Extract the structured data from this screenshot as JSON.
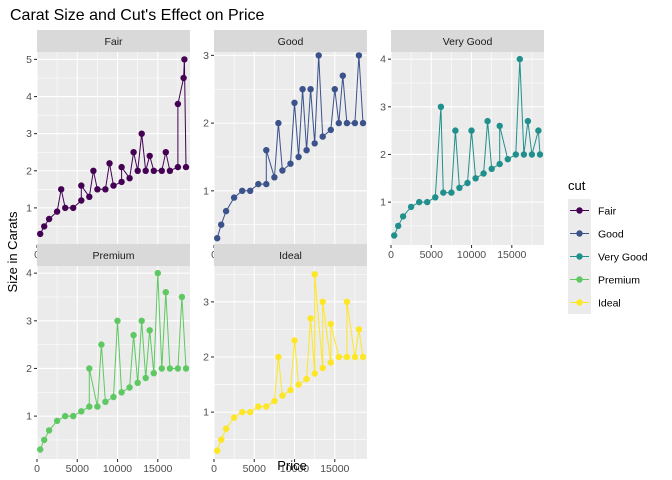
{
  "chart_data": {
    "type": "scatter",
    "title": "Carat Size and Cut's Effect on Price",
    "xlabel": "Price",
    "ylabel": "Size in Carats",
    "legend": {
      "title": "cut",
      "position": "right",
      "entries": [
        "Fair",
        "Good",
        "Very Good",
        "Premium",
        "Ideal"
      ]
    },
    "x_ticks": [
      "0",
      "5000",
      "10000",
      "15000"
    ],
    "grid": true,
    "panels": [
      {
        "name": "Fair",
        "color": "#440154",
        "xlim": [
          0,
          19000
        ],
        "ylim": [
          0,
          5.2
        ],
        "y_ticks": [
          "1",
          "2",
          "3",
          "4",
          "5"
        ],
        "points": [
          [
            400,
            0.3
          ],
          [
            900,
            0.5
          ],
          [
            1500,
            0.7
          ],
          [
            2500,
            0.9
          ],
          [
            3500,
            1.0
          ],
          [
            4500,
            1.0
          ],
          [
            5500,
            1.2
          ],
          [
            6500,
            1.3
          ],
          [
            7500,
            1.5
          ],
          [
            8500,
            1.5
          ],
          [
            9500,
            1.6
          ],
          [
            10500,
            1.7
          ],
          [
            11500,
            1.8
          ],
          [
            12500,
            2.0
          ],
          [
            13500,
            2.0
          ],
          [
            14500,
            2.0
          ],
          [
            15500,
            2.0
          ],
          [
            16500,
            2.0
          ],
          [
            17500,
            2.1
          ],
          [
            18500,
            2.1
          ],
          [
            7000,
            2.0
          ],
          [
            9000,
            2.2
          ],
          [
            10500,
            2.1
          ],
          [
            12000,
            2.5
          ],
          [
            13000,
            3.0
          ],
          [
            16000,
            2.5
          ],
          [
            17500,
            3.8
          ],
          [
            18200,
            4.5
          ],
          [
            18300,
            5.0
          ],
          [
            14000,
            2.4
          ],
          [
            5500,
            1.6
          ],
          [
            3000,
            1.5
          ]
        ]
      },
      {
        "name": "Good",
        "color": "#3b528b",
        "xlim": [
          0,
          19000
        ],
        "ylim": [
          0.2,
          3.05
        ],
        "y_ticks": [
          "1",
          "2",
          "3"
        ],
        "points": [
          [
            400,
            0.3
          ],
          [
            900,
            0.5
          ],
          [
            1500,
            0.7
          ],
          [
            2500,
            0.9
          ],
          [
            3500,
            1.0
          ],
          [
            4500,
            1.0
          ],
          [
            5500,
            1.1
          ],
          [
            6500,
            1.1
          ],
          [
            7500,
            1.2
          ],
          [
            8500,
            1.3
          ],
          [
            9500,
            1.4
          ],
          [
            10500,
            1.5
          ],
          [
            11500,
            1.6
          ],
          [
            12500,
            1.7
          ],
          [
            13500,
            1.8
          ],
          [
            14500,
            1.9
          ],
          [
            15500,
            2.0
          ],
          [
            16500,
            2.0
          ],
          [
            17500,
            2.0
          ],
          [
            18500,
            2.0
          ],
          [
            8000,
            2.0
          ],
          [
            10000,
            2.3
          ],
          [
            12000,
            2.5
          ],
          [
            13000,
            3.0
          ],
          [
            15000,
            2.5
          ],
          [
            16000,
            2.7
          ],
          [
            18000,
            3.0
          ],
          [
            11000,
            2.5
          ],
          [
            6500,
            1.6
          ]
        ]
      },
      {
        "name": "Very Good",
        "color": "#21908c",
        "xlim": [
          0,
          19000
        ],
        "ylim": [
          0.1,
          4.15
        ],
        "y_ticks": [
          "1",
          "2",
          "3",
          "4"
        ],
        "points": [
          [
            400,
            0.3
          ],
          [
            900,
            0.5
          ],
          [
            1500,
            0.7
          ],
          [
            2500,
            0.9
          ],
          [
            3500,
            1.0
          ],
          [
            4500,
            1.0
          ],
          [
            5500,
            1.1
          ],
          [
            6500,
            1.2
          ],
          [
            7500,
            1.2
          ],
          [
            8500,
            1.3
          ],
          [
            9500,
            1.4
          ],
          [
            10500,
            1.5
          ],
          [
            11500,
            1.6
          ],
          [
            12500,
            1.7
          ],
          [
            13500,
            1.8
          ],
          [
            14500,
            1.9
          ],
          [
            15500,
            2.0
          ],
          [
            16500,
            2.0
          ],
          [
            17500,
            2.0
          ],
          [
            18500,
            2.0
          ],
          [
            6200,
            3.0
          ],
          [
            8000,
            2.5
          ],
          [
            10000,
            2.5
          ],
          [
            12000,
            2.7
          ],
          [
            13500,
            2.6
          ],
          [
            16000,
            4.0
          ],
          [
            17000,
            2.7
          ],
          [
            18300,
            2.5
          ]
        ]
      },
      {
        "name": "Premium",
        "color": "#5ec962",
        "xlim": [
          0,
          19000
        ],
        "ylim": [
          0.1,
          4.15
        ],
        "y_ticks": [
          "1",
          "2",
          "3",
          "4"
        ],
        "points": [
          [
            400,
            0.3
          ],
          [
            900,
            0.5
          ],
          [
            1500,
            0.7
          ],
          [
            2500,
            0.9
          ],
          [
            3500,
            1.0
          ],
          [
            4500,
            1.0
          ],
          [
            5500,
            1.1
          ],
          [
            6500,
            1.2
          ],
          [
            7500,
            1.2
          ],
          [
            8500,
            1.3
          ],
          [
            9500,
            1.4
          ],
          [
            10500,
            1.5
          ],
          [
            11500,
            1.6
          ],
          [
            12500,
            1.7
          ],
          [
            13500,
            1.8
          ],
          [
            14500,
            1.9
          ],
          [
            15500,
            2.0
          ],
          [
            16500,
            2.0
          ],
          [
            17500,
            2.0
          ],
          [
            18500,
            2.0
          ],
          [
            8000,
            2.5
          ],
          [
            10000,
            3.0
          ],
          [
            12000,
            2.7
          ],
          [
            13000,
            3.0
          ],
          [
            14000,
            2.8
          ],
          [
            15000,
            4.0
          ],
          [
            16000,
            3.6
          ],
          [
            18000,
            3.5
          ],
          [
            6500,
            2.0
          ]
        ]
      },
      {
        "name": "Ideal",
        "color": "#fde725",
        "xlim": [
          0,
          19000
        ],
        "ylim": [
          0.15,
          3.65
        ],
        "y_ticks": [
          "1",
          "2",
          "3"
        ],
        "points": [
          [
            400,
            0.3
          ],
          [
            900,
            0.5
          ],
          [
            1500,
            0.7
          ],
          [
            2500,
            0.9
          ],
          [
            3500,
            1.0
          ],
          [
            4500,
            1.0
          ],
          [
            5500,
            1.1
          ],
          [
            6500,
            1.1
          ],
          [
            7500,
            1.2
          ],
          [
            8500,
            1.3
          ],
          [
            9500,
            1.4
          ],
          [
            10500,
            1.5
          ],
          [
            11500,
            1.6
          ],
          [
            12500,
            1.7
          ],
          [
            13500,
            1.8
          ],
          [
            14500,
            1.9
          ],
          [
            15500,
            2.0
          ],
          [
            16500,
            2.0
          ],
          [
            17500,
            2.0
          ],
          [
            18500,
            2.0
          ],
          [
            8000,
            2.0
          ],
          [
            10000,
            2.3
          ],
          [
            12000,
            2.7
          ],
          [
            12500,
            3.5
          ],
          [
            13500,
            3.0
          ],
          [
            14500,
            2.6
          ],
          [
            16500,
            3.0
          ],
          [
            18000,
            2.5
          ]
        ]
      }
    ]
  }
}
